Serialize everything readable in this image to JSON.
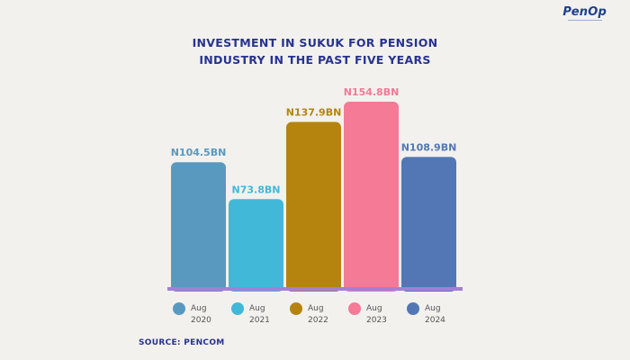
{
  "logo": {
    "text": "PenOp"
  },
  "chart_data": {
    "type": "bar",
    "title_lines": [
      "INVESTMENT IN SUKUK FOR  PENSION",
      "INDUSTRY IN THE PAST FIVE YEARS"
    ],
    "categories": [
      [
        "Aug",
        "2020"
      ],
      [
        "Aug",
        "2021"
      ],
      [
        "Aug",
        "2022"
      ],
      [
        "Aug",
        "2023"
      ],
      [
        "Aug",
        "2024"
      ]
    ],
    "values": [
      104.5,
      73.8,
      137.9,
      154.8,
      108.9
    ],
    "value_labels": [
      "N104.5BN",
      "N73.8BN",
      "N137.9BN",
      "N154.8BN",
      "N108.9BN"
    ],
    "unit": "BN",
    "colors": [
      "#5a99bf",
      "#41b8d8",
      "#b5840f",
      "#f47a96",
      "#5277b4"
    ],
    "ylim": [
      0,
      160
    ],
    "legend_position": "bottom",
    "grid": false
  },
  "source": "SOURCE: PENCOM"
}
